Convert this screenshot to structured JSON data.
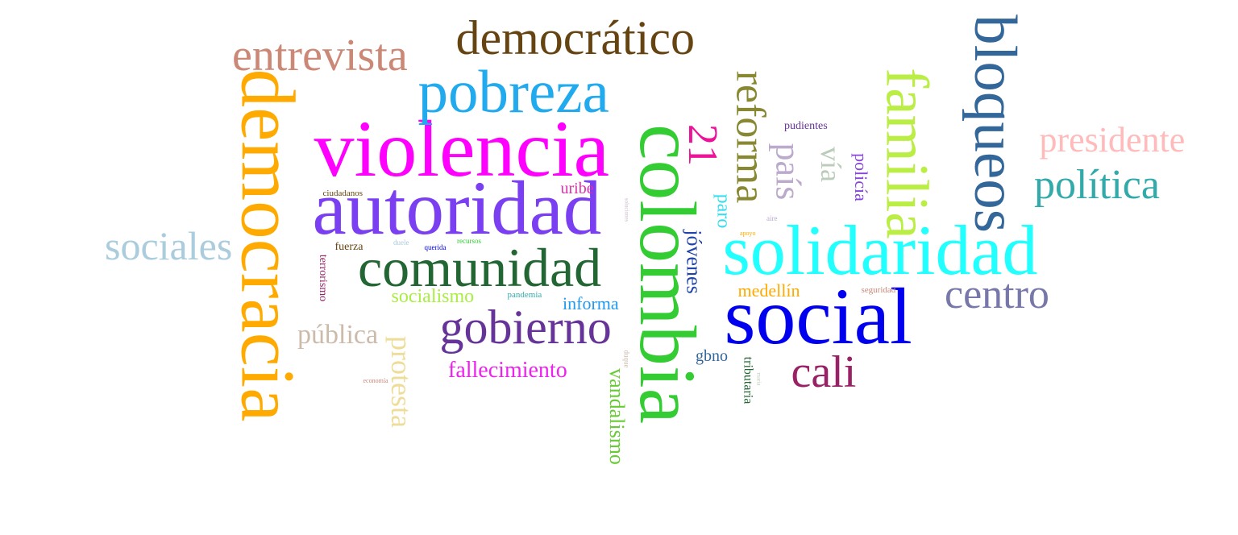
{
  "words": [
    {
      "text": "colombia",
      "color": "#33cc33",
      "orientation": "vertical"
    },
    {
      "text": "violencia",
      "color": "#ff00ff",
      "orientation": "horizontal"
    },
    {
      "text": "social",
      "color": "#0000ee",
      "orientation": "horizontal"
    },
    {
      "text": "democracia",
      "color": "#ffaa00",
      "orientation": "vertical"
    },
    {
      "text": "autoridad",
      "color": "#7b3ff2",
      "orientation": "horizontal"
    },
    {
      "text": "solidaridad",
      "color": "#22ffff",
      "orientation": "horizontal"
    },
    {
      "text": "pobreza",
      "color": "#22aaee",
      "orientation": "horizontal"
    },
    {
      "text": "familia",
      "color": "#bbee44",
      "orientation": "vertical"
    },
    {
      "text": "bloqueos",
      "color": "#336699",
      "orientation": "vertical"
    },
    {
      "text": "comunidad",
      "color": "#226633",
      "orientation": "horizontal"
    },
    {
      "text": "democrático",
      "color": "#664411",
      "orientation": "horizontal"
    },
    {
      "text": "entrevista",
      "color": "#cc8877",
      "orientation": "horizontal"
    },
    {
      "text": "gobierno",
      "color": "#663399",
      "orientation": "horizontal"
    },
    {
      "text": "reforma",
      "color": "#888833",
      "orientation": "vertical"
    },
    {
      "text": "sociales",
      "color": "#aaccdd",
      "orientation": "horizontal"
    },
    {
      "text": "política",
      "color": "#33aaaa",
      "orientation": "horizontal"
    },
    {
      "text": "centro",
      "color": "#7777aa",
      "orientation": "horizontal"
    },
    {
      "text": "presidente",
      "color": "#ffbbbb",
      "orientation": "horizontal"
    },
    {
      "text": "cali",
      "color": "#992266",
      "orientation": "horizontal"
    },
    {
      "text": "21",
      "color": "#ee1199",
      "orientation": "vertical"
    },
    {
      "text": "país",
      "color": "#bbaacc",
      "orientation": "vertical"
    },
    {
      "text": "protesta",
      "color": "#eedd99",
      "orientation": "vertical"
    },
    {
      "text": "pública",
      "color": "#ccbbaa",
      "orientation": "horizontal"
    },
    {
      "text": "vía",
      "color": "#bbccbb",
      "orientation": "vertical"
    },
    {
      "text": "fallecimiento",
      "color": "#ee22ee",
      "orientation": "horizontal"
    },
    {
      "text": "jóvenes",
      "color": "#2244aa",
      "orientation": "vertical"
    },
    {
      "text": "vandalismo",
      "color": "#66cc33",
      "orientation": "vertical"
    },
    {
      "text": "policía",
      "color": "#8844dd",
      "orientation": "vertical"
    },
    {
      "text": "paro",
      "color": "#33ddee",
      "orientation": "vertical"
    },
    {
      "text": "socialismo",
      "color": "#aaee44",
      "orientation": "horizontal"
    },
    {
      "text": "informa",
      "color": "#2299ee",
      "orientation": "horizontal"
    },
    {
      "text": "medellín",
      "color": "#ffaa00",
      "orientation": "horizontal"
    },
    {
      "text": "tributaria",
      "color": "#226633",
      "orientation": "vertical"
    },
    {
      "text": "uribe",
      "color": "#dd33aa",
      "orientation": "horizontal"
    },
    {
      "text": "gbno",
      "color": "#336699",
      "orientation": "horizontal"
    },
    {
      "text": "terrorismo",
      "color": "#992266",
      "orientation": "vertical"
    },
    {
      "text": "pudientes",
      "color": "#663399",
      "orientation": "horizontal"
    },
    {
      "text": "fuerza",
      "color": "#664411",
      "orientation": "horizontal"
    },
    {
      "text": "ciudadanos",
      "color": "#664411",
      "orientation": "horizontal"
    },
    {
      "text": "pandemia",
      "color": "#33aaaa",
      "orientation": "horizontal"
    },
    {
      "text": "seguridad",
      "color": "#cc8877",
      "orientation": "horizontal"
    },
    {
      "text": "recursos",
      "color": "#33cc33",
      "orientation": "horizontal"
    },
    {
      "text": "querida",
      "color": "#0000ee",
      "orientation": "horizontal"
    },
    {
      "text": "duele",
      "color": "#aaccdd",
      "orientation": "horizontal"
    },
    {
      "text": "duque",
      "color": "#ccbbaa",
      "orientation": "vertical"
    },
    {
      "text": "soluciones",
      "color": "#ccbbcc",
      "orientation": "vertical"
    },
    {
      "text": "aire",
      "color": "#bbaacc",
      "orientation": "horizontal"
    },
    {
      "text": "apoyo",
      "color": "#ffaa00",
      "orientation": "horizontal"
    },
    {
      "text": "economía",
      "color": "#cc8877",
      "orientation": "horizontal"
    },
    {
      "text": "maría",
      "color": "#bbccbb",
      "orientation": "vertical"
    }
  ]
}
